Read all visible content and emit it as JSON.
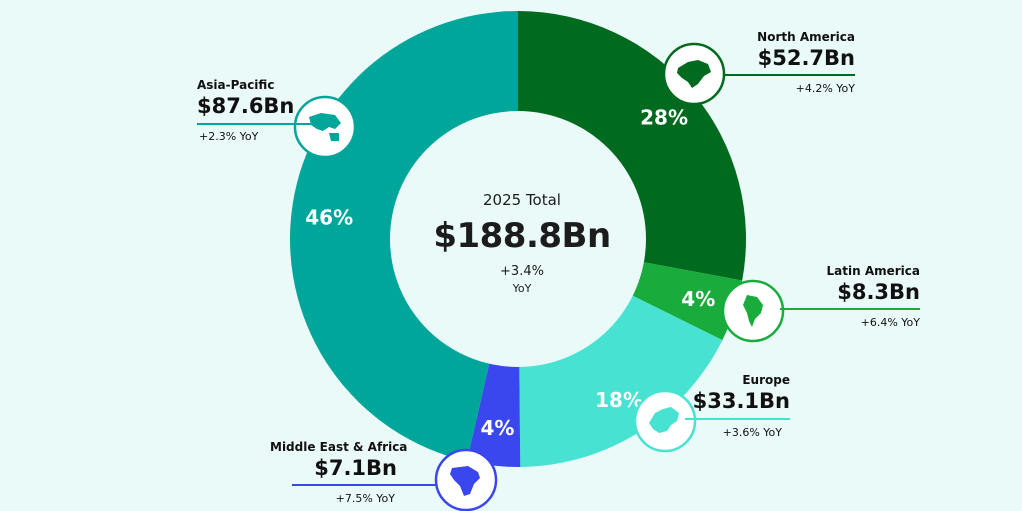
{
  "colors": {
    "background": "#eafaf8",
    "north_america": "#006a1f",
    "latin_america": "#1aab3d",
    "europe": "#48e2d3",
    "middle_east_africa": "#3a46ee",
    "asia_pacific": "#00a69a"
  },
  "center": {
    "title": "2025 Total",
    "total": "$188.8Bn",
    "yoy": "+3.4%",
    "yoy_unit": "YoY"
  },
  "chart_data": {
    "type": "pie",
    "categories": [
      "North America",
      "Latin America",
      "Europe",
      "Middle East & Africa",
      "Asia-Pacific"
    ],
    "values": [
      52.7,
      8.3,
      33.1,
      7.1,
      87.6
    ],
    "percent_labels": [
      "28%",
      "4%",
      "18%",
      "4%",
      "46%"
    ],
    "value_labels": [
      "$52.7Bn",
      "$8.3Bn",
      "$33.1Bn",
      "$7.1Bn",
      "$87.6Bn"
    ],
    "yoy_labels": [
      "+4.2% YoY",
      "+6.4% YoY",
      "+3.6% YoY",
      "+7.5% YoY",
      "+2.3% YoY"
    ],
    "unit": "Bn"
  },
  "regions": {
    "north_america": {
      "name": "North America",
      "value": "$52.7Bn",
      "yoy": "+4.2% YoY",
      "icon": "north-america-map-icon"
    },
    "latin_america": {
      "name": "Latin America",
      "value": "$8.3Bn",
      "yoy": "+6.4% YoY",
      "icon": "south-america-map-icon"
    },
    "europe": {
      "name": "Europe",
      "value": "$33.1Bn",
      "yoy": "+3.6% YoY",
      "icon": "europe-map-icon"
    },
    "middle_east_africa": {
      "name": "Middle East & Africa",
      "value": "$7.1Bn",
      "yoy": "+7.5% YoY",
      "icon": "africa-map-icon"
    },
    "asia_pacific": {
      "name": "Asia-Pacific",
      "value": "$87.6Bn",
      "yoy": "+2.3% YoY",
      "icon": "asia-pacific-map-icon"
    }
  }
}
